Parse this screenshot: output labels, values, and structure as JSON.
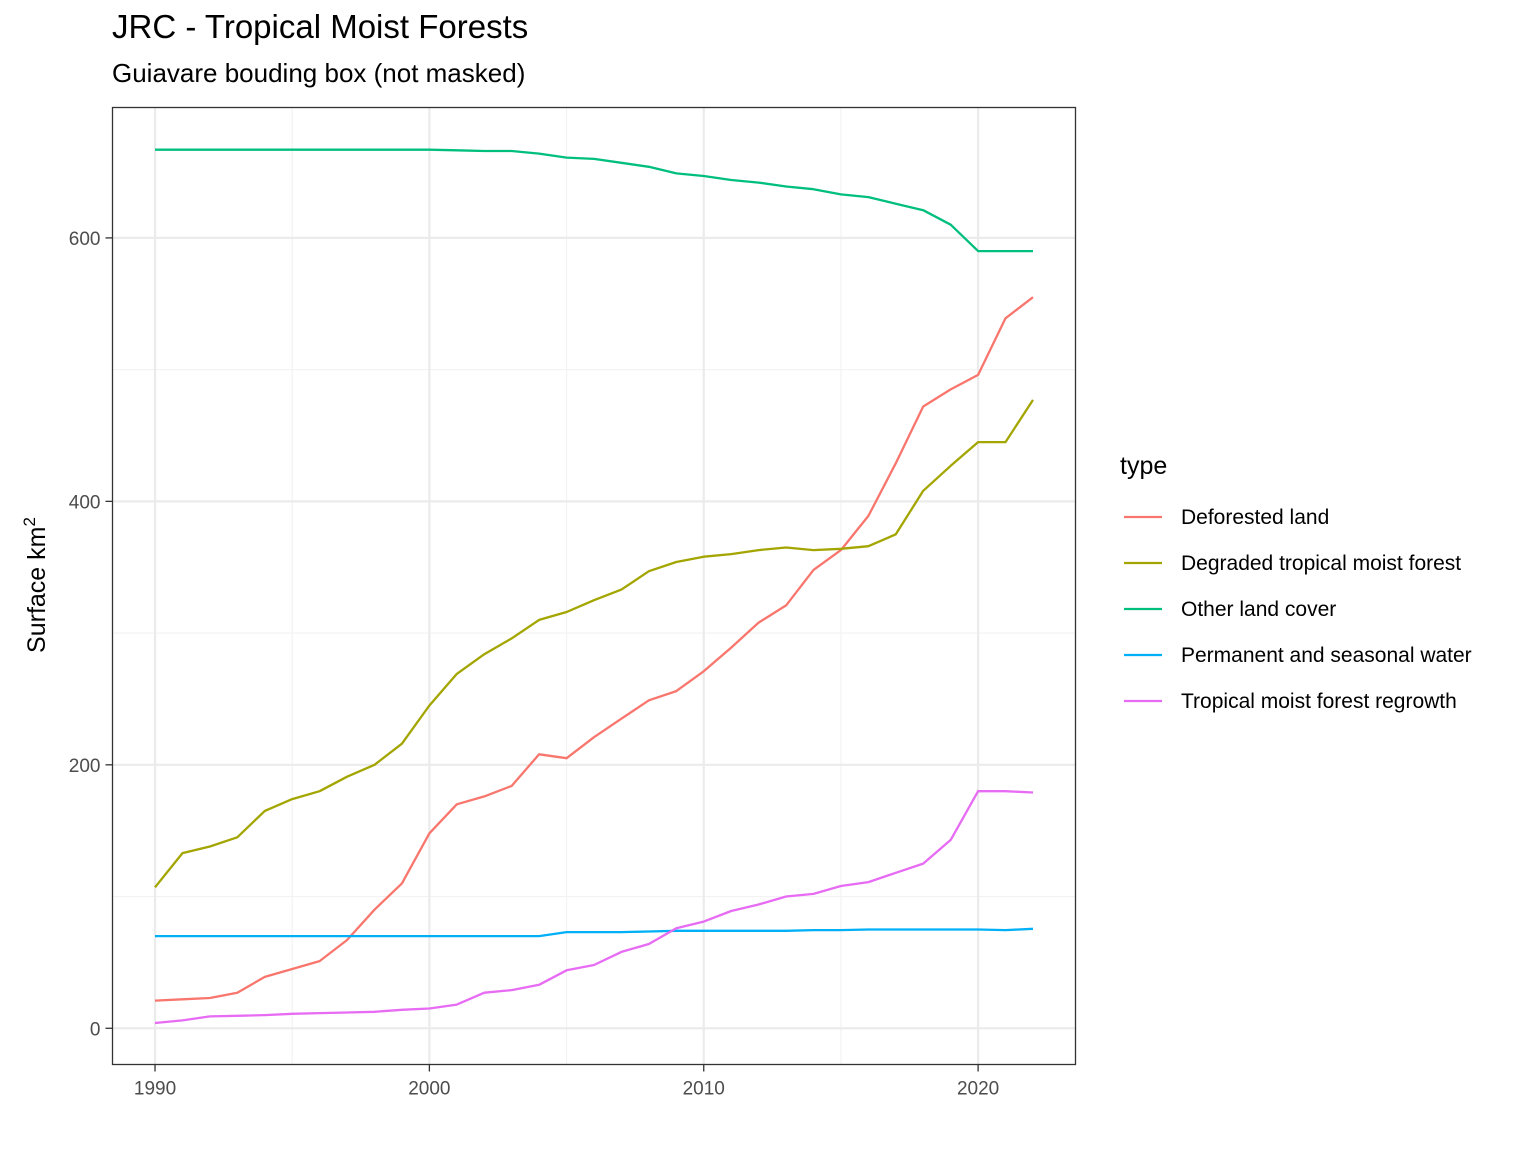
{
  "chart_data": {
    "type": "line",
    "title": "JRC - Tropical Moist Forests",
    "subtitle": "Guiavare bouding box (not masked)",
    "xlabel": "",
    "ylabel": "Surface km",
    "ylabel_superscript": "2",
    "xlim": [
      1988.45,
      2023.55
    ],
    "ylim": [
      -27.5,
      699
    ],
    "x_ticks": [
      1990,
      2000,
      2010,
      2020
    ],
    "y_ticks": [
      0,
      200,
      400,
      600
    ],
    "grid": true,
    "legend_title": "type",
    "legend_position": "right",
    "x": [
      1990,
      1991,
      1992,
      1993,
      1994,
      1995,
      1996,
      1997,
      1998,
      1999,
      2000,
      2001,
      2002,
      2003,
      2004,
      2005,
      2006,
      2007,
      2008,
      2009,
      2010,
      2011,
      2012,
      2013,
      2014,
      2015,
      2016,
      2017,
      2018,
      2019,
      2020,
      2021,
      2022
    ],
    "series": [
      {
        "name": "Deforested land",
        "color": "#F8766D",
        "values": [
          21,
          22,
          23,
          27,
          39,
          45,
          51,
          67,
          90,
          110,
          148,
          170,
          176,
          184,
          208,
          205,
          221,
          235,
          249,
          256,
          271,
          289,
          308,
          321,
          348,
          363,
          389,
          429,
          472,
          485,
          496,
          539,
          555
        ]
      },
      {
        "name": "Degraded tropical moist forest",
        "color": "#A3A500",
        "values": [
          107,
          133,
          138,
          145,
          165,
          174,
          180,
          191,
          200,
          216,
          245,
          269,
          284,
          296,
          310,
          316,
          325,
          333,
          347,
          354,
          358,
          360,
          363,
          365,
          363,
          364,
          366,
          375,
          408,
          427,
          445,
          445,
          477
        ]
      },
      {
        "name": "Other land cover",
        "color": "#00BF7D",
        "values": [
          667,
          667,
          667,
          667,
          667,
          667,
          667,
          667,
          667,
          667,
          667,
          666.5,
          666,
          666,
          664,
          661,
          660,
          657,
          654,
          649,
          647,
          644,
          642,
          639,
          637,
          633,
          631,
          626,
          621,
          610,
          590,
          590,
          590
        ]
      },
      {
        "name": "Permanent and seasonal water",
        "color": "#00B0F6",
        "values": [
          70,
          70,
          70,
          70,
          70,
          70,
          70,
          70,
          70,
          70,
          70,
          70,
          70,
          70,
          70,
          73,
          73,
          73,
          73.5,
          74,
          74,
          74,
          74,
          74,
          74.5,
          74.5,
          75,
          75,
          75,
          75,
          75,
          74.5,
          75.5
        ]
      },
      {
        "name": "Tropical moist forest regrowth",
        "color": "#E76BF3",
        "values": [
          4,
          6,
          9,
          9.5,
          10,
          11,
          11.5,
          12,
          12.5,
          14,
          15,
          18,
          27,
          29,
          33,
          44,
          48,
          58,
          64,
          76,
          81,
          89,
          94,
          100,
          102,
          108,
          111,
          118,
          125,
          143,
          180,
          180,
          179
        ]
      }
    ]
  }
}
